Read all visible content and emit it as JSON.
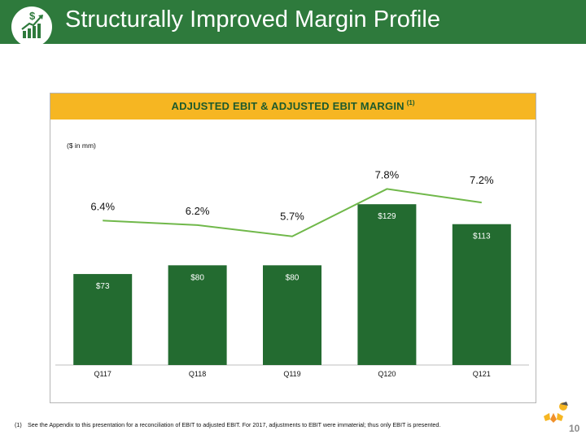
{
  "header": {
    "title": "Structurally Improved Margin Profile",
    "icon": "growth-chart-icon"
  },
  "chart_box": {
    "title": "ADJUSTED EBIT & ADJUSTED EBIT MARGIN",
    "title_sup": "(1)",
    "units": "($ in mm)"
  },
  "chart_data": {
    "type": "bar",
    "categories": [
      "Q117",
      "Q118",
      "Q119",
      "Q120",
      "Q121"
    ],
    "series": [
      {
        "values": [
          73,
          80,
          80,
          129,
          113
        ],
        "labels": [
          "$73",
          "$80",
          "$80",
          "$129",
          "$113"
        ],
        "color": "#236b30"
      },
      {
        "type": "line",
        "values": [
          6.4,
          6.2,
          5.7,
          7.8,
          7.2
        ],
        "labels": [
          "6.4%",
          "6.2%",
          "5.7%",
          "7.8%",
          "7.2%"
        ],
        "color": "#70b84a"
      }
    ],
    "ylim": [
      0,
      150
    ],
    "y2lim": [
      0,
      9.4
    ]
  },
  "footnote": {
    "number": "(1)",
    "text": "See the Appendix to this presentation for a reconciliation of EBIT to adjusted EBIT.  For 2017, adjustments to EBIT  were immaterial; thus only EBIT is presented."
  },
  "page_number": "10",
  "colors": {
    "brand_green": "#2e7a3c",
    "header_gold": "#f6b622",
    "bar_green": "#236b30",
    "line_green": "#70b84a"
  }
}
